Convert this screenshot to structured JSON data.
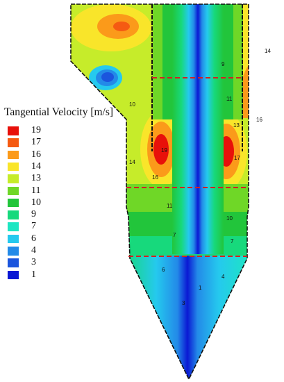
{
  "chart_data": {
    "type": "heatmap",
    "title": "",
    "legend": {
      "title": "Tangential Velocity [m/s]",
      "placement": "left",
      "entries": [
        {
          "value": "19",
          "color": "#e8100a"
        },
        {
          "value": "17",
          "color": "#f55a12"
        },
        {
          "value": "16",
          "color": "#fb9a1a"
        },
        {
          "value": "14",
          "color": "#f9e52a"
        },
        {
          "value": "13",
          "color": "#c6ec2a"
        },
        {
          "value": "11",
          "color": "#6fd727"
        },
        {
          "value": "10",
          "color": "#22c53b"
        },
        {
          "value": "9",
          "color": "#17d97c"
        },
        {
          "value": "7",
          "color": "#1de6c2"
        },
        {
          "value": "6",
          "color": "#25c9ee"
        },
        {
          "value": "4",
          "color": "#238ae8"
        },
        {
          "value": "3",
          "color": "#1b55dd"
        },
        {
          "value": "1",
          "color": "#0a18d4"
        }
      ]
    },
    "contour_labels": [
      "9",
      "14",
      "10",
      "11",
      "13",
      "16",
      "19",
      "17",
      "14",
      "16",
      "11",
      "10",
      "7",
      "7",
      "6",
      "4",
      "1",
      "3"
    ],
    "section_lines": 3,
    "section_line_color": "#d42020"
  }
}
